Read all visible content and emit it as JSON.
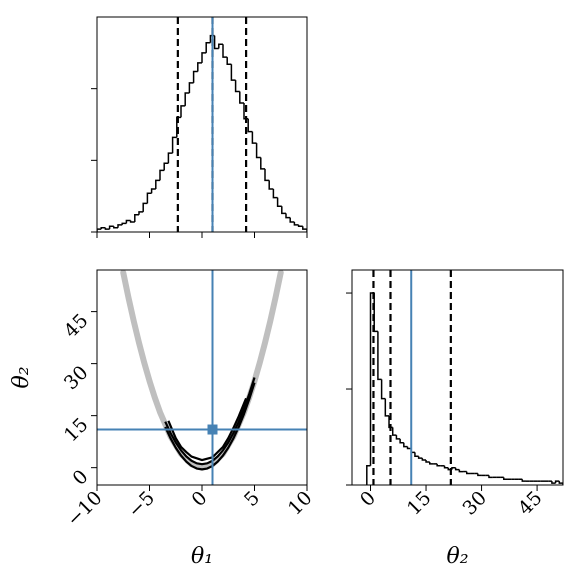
{
  "chart_data": [
    {
      "type": "histogram",
      "color": "#000000",
      "truth_color": "#4682b4",
      "bins": [
        -10,
        -9.6,
        -9.2,
        -8.8,
        -8.4,
        -8,
        -7.6,
        -7.2,
        -6.8,
        -6.4,
        -6,
        -5.6,
        -5.2,
        -4.8,
        -4.4,
        -4,
        -3.6,
        -3.2,
        -2.8,
        -2.4,
        -2,
        -1.6,
        -1.2,
        -0.8,
        -0.4,
        0,
        0.4,
        0.8,
        1.2,
        1.6,
        2,
        2.4,
        2.8,
        3.2,
        3.6,
        4,
        4.4,
        4.8,
        5.2,
        5.6,
        6,
        6.4,
        6.8,
        7.2,
        7.6,
        8,
        8.4,
        8.8,
        9.2,
        9.6,
        10
      ],
      "values": [
        0.002,
        0.003,
        0.002,
        0.004,
        0.003,
        0.005,
        0.006,
        0.008,
        0.007,
        0.012,
        0.014,
        0.02,
        0.027,
        0.03,
        0.036,
        0.043,
        0.048,
        0.055,
        0.066,
        0.08,
        0.088,
        0.097,
        0.104,
        0.112,
        0.118,
        0.125,
        0.132,
        0.137,
        0.128,
        0.131,
        0.122,
        0.117,
        0.106,
        0.098,
        0.09,
        0.079,
        0.07,
        0.062,
        0.052,
        0.044,
        0.036,
        0.03,
        0.024,
        0.018,
        0.013,
        0.01,
        0.007,
        0.005,
        0.004,
        0.002
      ],
      "xlim": [
        -10,
        10
      ],
      "xticks": [
        -10,
        -5,
        0,
        5,
        10
      ],
      "ylim": [
        0,
        0.15
      ],
      "yticks": [
        0,
        0.05,
        0.1
      ],
      "quantiles": [
        -2.3,
        1,
        4.2
      ],
      "truth": 1
    },
    {
      "type": "contour",
      "color": "#000000",
      "truth_color": "#4682b4",
      "xlabel": "θ₁",
      "ylabel": "θ₂",
      "xlim": [
        -10,
        10
      ],
      "ylim": [
        -5,
        57
      ],
      "xticks": [
        {
          "value": -10,
          "label": "−10"
        },
        {
          "value": -5,
          "label": "−5"
        },
        0,
        5,
        10
      ],
      "yticks": [
        0,
        15,
        30,
        45
      ],
      "ridge": {
        "x": [
          -7.5,
          -7,
          -6.5,
          -6,
          -5.5,
          -5,
          -4.5,
          -4,
          -3,
          -2,
          -1,
          0,
          1,
          2,
          3,
          4,
          4.5,
          5,
          5.5,
          6,
          6.5,
          7,
          7.5
        ],
        "y": [
          56.25,
          49,
          42.25,
          36,
          30.25,
          25,
          20.25,
          16,
          9,
          4,
          1,
          0,
          1,
          4,
          9,
          16,
          20.25,
          25,
          30.25,
          36,
          42.25,
          49,
          56.25
        ]
      },
      "contours": [
        {
          "x": [
            -3.5,
            -3,
            -2.5,
            -2,
            -1.5,
            -1,
            -0.5,
            0,
            0.5,
            1,
            1.5,
            2,
            2.5,
            3,
            3.5,
            4,
            4.5,
            5
          ],
          "y": [
            11.75,
            8.5,
            5.75,
            3.5,
            1.75,
            0.5,
            -0.25,
            -0.5,
            -0.25,
            0.5,
            1.75,
            3.5,
            5.75,
            8.5,
            11.75,
            15.5,
            19.75,
            24.5
          ]
        },
        {
          "x": [
            -3.5,
            -3,
            -2.5,
            -2,
            -1.5,
            -1,
            -0.5,
            0,
            0.5,
            1,
            1.5,
            2,
            2.5,
            3,
            3.5,
            4,
            4.5,
            5
          ],
          "y": [
            13.25,
            10,
            7.25,
            5,
            3.25,
            2,
            1.25,
            1,
            1.25,
            2,
            3.25,
            5,
            7.25,
            10,
            13.25,
            17,
            21.25,
            26
          ]
        },
        {
          "x": [
            -3.2,
            -2.5,
            -2,
            -1.5,
            -1,
            0,
            1,
            2,
            2.5,
            3,
            3.5,
            4.2
          ],
          "y": [
            13.5,
            8.5,
            6,
            4.5,
            3.2,
            2.2,
            3,
            6,
            8.5,
            11.5,
            14.8,
            20
          ]
        }
      ],
      "truth": [
        1,
        11
      ]
    },
    {
      "type": "histogram",
      "color": "#000000",
      "truth_color": "#4682b4",
      "xlabel": "θ₂",
      "bins": [
        -1,
        0,
        1,
        2,
        3,
        4,
        5,
        6,
        7,
        8,
        9,
        10,
        11,
        12,
        13,
        14,
        15,
        16,
        17,
        18,
        19,
        20,
        21,
        22,
        23,
        24,
        25,
        26,
        27,
        28,
        29,
        30,
        31,
        32,
        33,
        34,
        35,
        36,
        37,
        38,
        39,
        40,
        41,
        42,
        43,
        44,
        45,
        46,
        47,
        48,
        49,
        50,
        51,
        52
      ],
      "values": [
        0.01,
        0.1,
        0.08,
        0.055,
        0.045,
        0.036,
        0.03,
        0.026,
        0.024,
        0.022,
        0.02,
        0.019,
        0.017,
        0.015,
        0.014,
        0.013,
        0.012,
        0.011,
        0.011,
        0.01,
        0.01,
        0.009,
        0.008,
        0.009,
        0.008,
        0.007,
        0.007,
        0.006,
        0.006,
        0.006,
        0.005,
        0.005,
        0.005,
        0.004,
        0.004,
        0.004,
        0.004,
        0.003,
        0.003,
        0.003,
        0.003,
        0.003,
        0.002,
        0.002,
        0.002,
        0.002,
        0.002,
        0.002,
        0.002,
        0.002,
        0.001,
        0.002,
        0.001
      ],
      "xlim": [
        -5,
        52
      ],
      "xticks": [
        0,
        15,
        30,
        45
      ],
      "ylim": [
        0,
        0.112
      ],
      "yticks": [
        0,
        0.05,
        0.1
      ],
      "quantiles": [
        0.8,
        5.4,
        21.7
      ],
      "truth": 11
    }
  ]
}
